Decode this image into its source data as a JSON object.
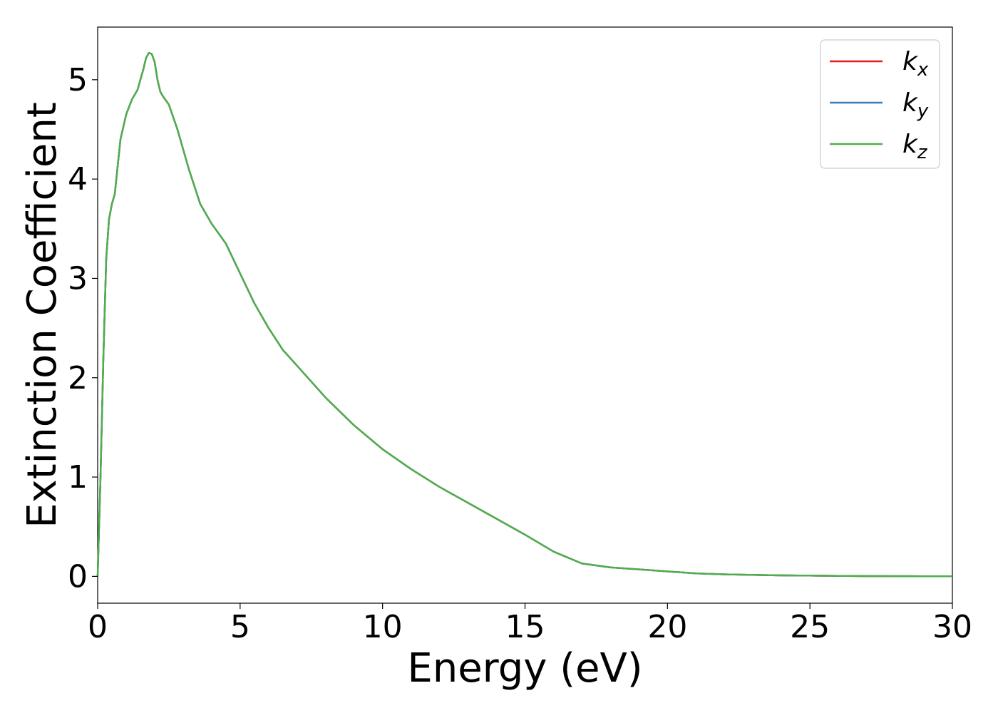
{
  "chart_data": {
    "type": "line",
    "title": "",
    "xlabel": "Energy (eV)",
    "ylabel": "Extinction Coefficient",
    "xlim": [
      0,
      30
    ],
    "ylim": [
      -0.27,
      5.53
    ],
    "xticks": [
      0,
      5,
      10,
      15,
      20,
      25,
      30
    ],
    "yticks": [
      0,
      1,
      2,
      3,
      4,
      5
    ],
    "grid": false,
    "legend_position": "top-right",
    "x": [
      0,
      0.1,
      0.2,
      0.3,
      0.4,
      0.5,
      0.6,
      0.8,
      1.0,
      1.2,
      1.4,
      1.5,
      1.6,
      1.7,
      1.8,
      1.9,
      2.0,
      2.1,
      2.2,
      2.3,
      2.5,
      2.8,
      3.2,
      3.6,
      4.0,
      4.5,
      5.0,
      5.5,
      6.0,
      6.5,
      7.0,
      8.0,
      9.0,
      10.0,
      11.0,
      12.0,
      13.0,
      14.0,
      15.0,
      16.0,
      17.0,
      18.0,
      19.0,
      20.0,
      21.0,
      22.0,
      23.0,
      24.0,
      25.0,
      26.0,
      27.0,
      28.0,
      29.0,
      30.0
    ],
    "series": [
      {
        "name": "k_x",
        "color": "#e41a1c",
        "values": [
          0.0,
          1.0,
          2.2,
          3.2,
          3.6,
          3.75,
          3.85,
          4.4,
          4.65,
          4.8,
          4.9,
          5.0,
          5.1,
          5.22,
          5.27,
          5.26,
          5.18,
          5.0,
          4.88,
          4.83,
          4.75,
          4.5,
          4.1,
          3.75,
          3.55,
          3.35,
          3.05,
          2.75,
          2.5,
          2.28,
          2.12,
          1.8,
          1.52,
          1.28,
          1.08,
          0.9,
          0.74,
          0.58,
          0.42,
          0.25,
          0.13,
          0.09,
          0.07,
          0.05,
          0.03,
          0.02,
          0.015,
          0.01,
          0.008,
          0.005,
          0.003,
          0.002,
          0.001,
          0.001
        ]
      },
      {
        "name": "k_y",
        "color": "#377eb8",
        "values": [
          0.0,
          1.0,
          2.2,
          3.2,
          3.6,
          3.75,
          3.85,
          4.4,
          4.65,
          4.8,
          4.9,
          5.0,
          5.1,
          5.22,
          5.27,
          5.26,
          5.18,
          5.0,
          4.88,
          4.83,
          4.75,
          4.5,
          4.1,
          3.75,
          3.55,
          3.35,
          3.05,
          2.75,
          2.5,
          2.28,
          2.12,
          1.8,
          1.52,
          1.28,
          1.08,
          0.9,
          0.74,
          0.58,
          0.42,
          0.25,
          0.13,
          0.09,
          0.07,
          0.05,
          0.03,
          0.02,
          0.015,
          0.01,
          0.008,
          0.005,
          0.003,
          0.002,
          0.001,
          0.001
        ]
      },
      {
        "name": "k_z",
        "color": "#4daf4a",
        "values": [
          0.0,
          1.0,
          2.2,
          3.2,
          3.6,
          3.75,
          3.85,
          4.4,
          4.65,
          4.8,
          4.9,
          5.0,
          5.1,
          5.22,
          5.27,
          5.26,
          5.18,
          5.0,
          4.88,
          4.83,
          4.75,
          4.5,
          4.1,
          3.75,
          3.55,
          3.35,
          3.05,
          2.75,
          2.5,
          2.28,
          2.12,
          1.8,
          1.52,
          1.28,
          1.08,
          0.9,
          0.74,
          0.58,
          0.42,
          0.25,
          0.13,
          0.09,
          0.07,
          0.05,
          0.03,
          0.02,
          0.015,
          0.01,
          0.008,
          0.005,
          0.003,
          0.002,
          0.001,
          0.001
        ]
      }
    ],
    "legend": [
      {
        "main": "k",
        "sub": "x"
      },
      {
        "main": "k",
        "sub": "y"
      },
      {
        "main": "k",
        "sub": "z"
      }
    ]
  }
}
